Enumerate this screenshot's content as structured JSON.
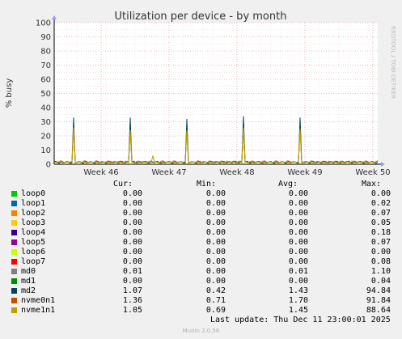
{
  "chart_data": {
    "type": "line",
    "title": "Utilization per device - by month",
    "ylabel": "% busy",
    "side_label": "RRDTOOL / TOBI OETIKER",
    "ylim": [
      0,
      100
    ],
    "yticks": [
      0,
      10,
      20,
      30,
      40,
      50,
      60,
      70,
      80,
      90,
      100
    ],
    "xticks": [
      "Week 46",
      "Week 47",
      "Week 48",
      "Week 49",
      "Week 50"
    ],
    "grid": true,
    "series": [
      {
        "name": "md2",
        "color": "#00455e",
        "spikes": [
          {
            "x": 0.059,
            "y": 33
          },
          {
            "x": 0.233,
            "y": 33
          },
          {
            "x": 0.409,
            "y": 32
          },
          {
            "x": 0.584,
            "y": 34
          },
          {
            "x": 0.759,
            "y": 33
          }
        ],
        "baseline": 1.4
      },
      {
        "name": "nvme0n1",
        "color": "#c05000",
        "spikes": [
          {
            "x": 0.059,
            "y": 26
          },
          {
            "x": 0.233,
            "y": 24
          },
          {
            "x": 0.409,
            "y": 24
          },
          {
            "x": 0.584,
            "y": 26
          },
          {
            "x": 0.759,
            "y": 25
          }
        ],
        "baseline": 1.7
      },
      {
        "name": "nvme1n1",
        "color": "#b8a200",
        "spikes": [
          {
            "x": 0.059,
            "y": 26
          },
          {
            "x": 0.233,
            "y": 24
          },
          {
            "x": 0.307,
            "y": 6
          },
          {
            "x": 0.409,
            "y": 24
          },
          {
            "x": 0.584,
            "y": 26
          },
          {
            "x": 0.759,
            "y": 25
          }
        ],
        "baseline": 1.45
      }
    ]
  },
  "legend": {
    "headers": {
      "cur": "Cur:",
      "min": "Min:",
      "avg": "Avg:",
      "max": "Max:"
    },
    "rows": [
      {
        "name": "loop0",
        "color": "#00cc00",
        "cur": "0.00",
        "min": "0.00",
        "avg": "0.00",
        "max": "0.00"
      },
      {
        "name": "loop1",
        "color": "#0066b3",
        "cur": "0.00",
        "min": "0.00",
        "avg": "0.00",
        "max": "0.02"
      },
      {
        "name": "loop2",
        "color": "#ff8000",
        "cur": "0.00",
        "min": "0.00",
        "avg": "0.00",
        "max": "0.07"
      },
      {
        "name": "loop3",
        "color": "#ffcc00",
        "cur": "0.00",
        "min": "0.00",
        "avg": "0.00",
        "max": "0.05"
      },
      {
        "name": "loop4",
        "color": "#330099",
        "cur": "0.00",
        "min": "0.00",
        "avg": "0.00",
        "max": "0.18"
      },
      {
        "name": "loop5",
        "color": "#990099",
        "cur": "0.00",
        "min": "0.00",
        "avg": "0.00",
        "max": "0.07"
      },
      {
        "name": "loop6",
        "color": "#ccff00",
        "cur": "0.00",
        "min": "0.00",
        "avg": "0.00",
        "max": "0.00"
      },
      {
        "name": "loop7",
        "color": "#ff0000",
        "cur": "0.00",
        "min": "0.00",
        "avg": "0.00",
        "max": "0.08"
      },
      {
        "name": "md0",
        "color": "#808080",
        "cur": "0.01",
        "min": "0.00",
        "avg": "0.01",
        "max": "1.10"
      },
      {
        "name": "md1",
        "color": "#008f00",
        "cur": "0.00",
        "min": "0.00",
        "avg": "0.00",
        "max": "0.04"
      },
      {
        "name": "md2",
        "color": "#00455e",
        "cur": "1.07",
        "min": "0.42",
        "avg": "1.43",
        "max": "94.84"
      },
      {
        "name": "nvme0n1",
        "color": "#c05000",
        "cur": "1.36",
        "min": "0.71",
        "avg": "1.70",
        "max": "91.84"
      },
      {
        "name": "nvme1n1",
        "color": "#b8a200",
        "cur": "1.05",
        "min": "0.69",
        "avg": "1.45",
        "max": "88.64"
      }
    ]
  },
  "footer": {
    "last_update": "Last update: Thu Dec 11 23:00:01 2025",
    "munin": "Munin 2.0.56"
  }
}
